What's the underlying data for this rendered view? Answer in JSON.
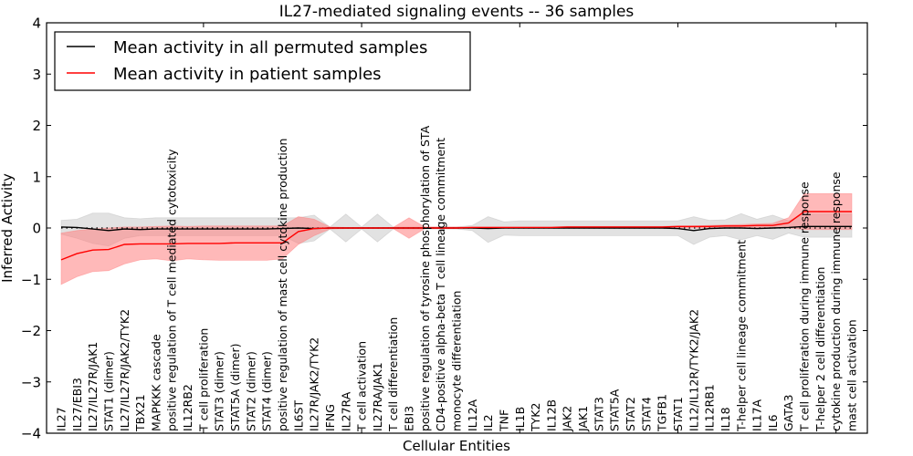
{
  "chart_data": {
    "type": "line",
    "title": "IL27-mediated signaling events -- 36 samples",
    "xlabel": "Cellular Entities",
    "ylabel": "Inferred Activity",
    "ylim": [
      -4,
      4
    ],
    "yticks": [
      -4,
      -3,
      -2,
      -1,
      0,
      1,
      2,
      3,
      4
    ],
    "ytick_labels": [
      "−4",
      "−3",
      "−2",
      "−1",
      "0",
      "1",
      "2",
      "3",
      "4"
    ],
    "grid": false,
    "legend_position": "top-left",
    "reference_line": {
      "y": 0,
      "style": "dotted",
      "color": "#000000"
    },
    "categories": [
      "IL27",
      "IL27/EBI3",
      "IL27/IL27R/JAK1",
      "STAT1 (dimer)",
      "IL27/IL27R/JAK2/TYK2",
      "TBX21",
      "MAPKKK cascade",
      "positive regulation of T cell mediated cytotoxicity",
      "IL12RB2",
      "T cell proliferation",
      "STAT3 (dimer)",
      "STAT5A (dimer)",
      "STAT2 (dimer)",
      "STAT4 (dimer)",
      "positive regulation of mast cell cytokine production",
      "IL6ST",
      "IL27R/JAK2/TYK2",
      "IFNG",
      "IL27RA",
      "T cell activation",
      "IL27RA/JAK1",
      "T cell differentiation",
      "EBI3",
      "positive regulation of tyrosine phosphorylation of STA",
      "CD4-positive alpha-beta T cell lineage commitment",
      "monocyte differentiation",
      "IL12A",
      "IL2",
      "TNF",
      "IL1B",
      "TYK2",
      "IL12B",
      "JAK2",
      "JAK1",
      "STAT3",
      "STAT5A",
      "STAT2",
      "STAT4",
      "TGFB1",
      "STAT1",
      "IL12/IL12R/TYK2/JAK2",
      "IL12RB1",
      "IL18",
      "T-helper cell lineage commitment",
      "IL17A",
      "IL6",
      "GATA3",
      "T cell proliferation during immune response",
      "T-helper 2 cell differentiation",
      "cytokine production during immune response",
      "mast cell activation"
    ],
    "xtick_positions": [
      10,
      20,
      30,
      40,
      50
    ],
    "series": [
      {
        "name": "Mean activity in all permuted samples",
        "color": "#000000",
        "band_color": "#bfbfbf",
        "values": [
          0.02,
          0.01,
          -0.02,
          -0.05,
          -0.02,
          -0.03,
          -0.02,
          -0.02,
          -0.02,
          -0.02,
          -0.02,
          -0.02,
          -0.02,
          -0.02,
          -0.01,
          0.0,
          -0.01,
          0.0,
          0.0,
          0.0,
          0.0,
          0.0,
          0.0,
          0.0,
          0.0,
          0.0,
          0.0,
          -0.01,
          0.0,
          0.0,
          0.0,
          0.0,
          0.0,
          0.0,
          0.0,
          0.0,
          0.0,
          0.0,
          0.0,
          -0.01,
          -0.05,
          -0.01,
          0.0,
          0.0,
          -0.01,
          0.0,
          0.01,
          0.03,
          0.03,
          0.03,
          0.03
        ],
        "upper": [
          0.15,
          0.17,
          0.29,
          0.29,
          0.2,
          0.18,
          0.2,
          0.2,
          0.2,
          0.2,
          0.2,
          0.2,
          0.2,
          0.2,
          0.2,
          0.2,
          0.25,
          0.02,
          0.27,
          0.02,
          0.27,
          0.02,
          0.02,
          0.02,
          0.02,
          0.02,
          0.05,
          0.22,
          0.12,
          0.14,
          0.14,
          0.14,
          0.14,
          0.14,
          0.14,
          0.14,
          0.14,
          0.14,
          0.14,
          0.14,
          0.22,
          0.15,
          0.16,
          0.28,
          0.17,
          0.25,
          0.14,
          0.27,
          0.27,
          0.27,
          0.27
        ],
        "lower": [
          -0.12,
          -0.2,
          -0.3,
          -0.35,
          -0.2,
          -0.15,
          -0.15,
          -0.15,
          -0.15,
          -0.15,
          -0.15,
          -0.15,
          -0.15,
          -0.15,
          -0.15,
          -0.3,
          -0.25,
          -0.02,
          -0.27,
          -0.02,
          -0.27,
          -0.02,
          -0.02,
          -0.02,
          -0.02,
          -0.02,
          -0.05,
          -0.28,
          -0.14,
          -0.15,
          -0.15,
          -0.15,
          -0.15,
          -0.15,
          -0.15,
          -0.15,
          -0.15,
          -0.15,
          -0.15,
          -0.15,
          -0.32,
          -0.18,
          -0.15,
          -0.23,
          -0.15,
          -0.22,
          -0.1,
          -0.18,
          -0.18,
          -0.18,
          -0.18
        ]
      },
      {
        "name": "Mean activity in patient samples",
        "color": "#ff0000",
        "band_color": "#ff7f7f",
        "values": [
          -0.62,
          -0.5,
          -0.43,
          -0.42,
          -0.32,
          -0.31,
          -0.31,
          -0.31,
          -0.3,
          -0.3,
          -0.3,
          -0.29,
          -0.29,
          -0.29,
          -0.29,
          -0.07,
          -0.01,
          0.0,
          0.0,
          0.0,
          0.0,
          0.0,
          0.0,
          0.0,
          0.0,
          0.0,
          0.01,
          0.01,
          0.01,
          0.01,
          0.01,
          0.01,
          0.02,
          0.02,
          0.02,
          0.02,
          0.02,
          0.02,
          0.02,
          0.03,
          0.03,
          0.03,
          0.04,
          0.04,
          0.05,
          0.05,
          0.1,
          0.32,
          0.32,
          0.32,
          0.32
        ],
        "upper": [
          -0.1,
          -0.05,
          -0.02,
          0.0,
          0.02,
          0.02,
          0.03,
          0.04,
          0.03,
          0.04,
          0.04,
          0.04,
          0.04,
          0.04,
          0.04,
          0.22,
          0.17,
          0.02,
          0.01,
          0.01,
          0.01,
          0.01,
          0.2,
          0.02,
          0.02,
          0.02,
          0.02,
          0.02,
          0.02,
          0.02,
          0.02,
          0.02,
          0.03,
          0.03,
          0.03,
          0.03,
          0.03,
          0.03,
          0.03,
          0.04,
          0.04,
          0.05,
          0.06,
          0.07,
          0.08,
          0.09,
          0.2,
          0.67,
          0.67,
          0.67,
          0.67
        ],
        "lower": [
          -1.1,
          -0.95,
          -0.85,
          -0.83,
          -0.7,
          -0.62,
          -0.6,
          -0.64,
          -0.6,
          -0.62,
          -0.63,
          -0.63,
          -0.63,
          -0.63,
          -0.6,
          -0.32,
          -0.15,
          -0.02,
          -0.01,
          -0.01,
          -0.01,
          -0.01,
          -0.2,
          -0.01,
          -0.01,
          -0.01,
          0.0,
          0.0,
          0.0,
          0.0,
          0.0,
          0.0,
          0.0,
          0.0,
          0.0,
          0.0,
          0.0,
          0.0,
          0.0,
          0.0,
          0.0,
          0.0,
          0.0,
          0.0,
          0.0,
          0.0,
          0.0,
          -0.03,
          -0.03,
          -0.03,
          -0.03
        ]
      }
    ]
  }
}
